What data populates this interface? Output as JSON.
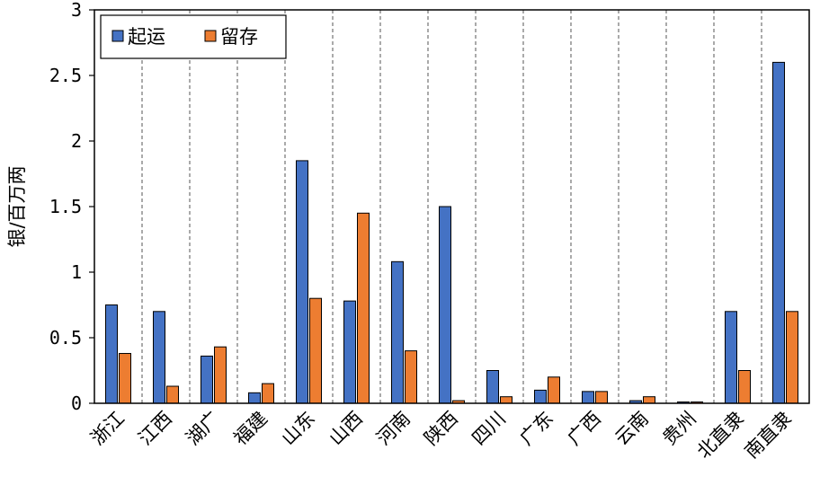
{
  "chart_data": {
    "type": "bar",
    "ylabel": "银/百万两",
    "ylim": [
      0,
      3
    ],
    "yticks": [
      "0",
      "0.5",
      "1",
      "1.5",
      "2",
      "2.5",
      "3"
    ],
    "categories": [
      "浙江",
      "江西",
      "湖广",
      "福建",
      "山东",
      "山西",
      "河南",
      "陕西",
      "四川",
      "广东",
      "广西",
      "云南",
      "贵州",
      "北直隶",
      "南直隶"
    ],
    "series": [
      {
        "name": "起运",
        "color": "#4472C4",
        "values": [
          0.75,
          0.7,
          0.36,
          0.08,
          1.85,
          0.78,
          1.08,
          1.5,
          0.25,
          0.1,
          0.09,
          0.02,
          0.01,
          0.7,
          2.6
        ]
      },
      {
        "name": "留存",
        "color": "#ED7D31",
        "values": [
          0.38,
          0.13,
          0.43,
          0.15,
          0.8,
          1.45,
          0.4,
          0.02,
          0.05,
          0.2,
          0.09,
          0.05,
          0.01,
          0.25,
          0.7
        ]
      }
    ],
    "legend_position": "top-left",
    "grid": "vertical dashed separators between categories"
  }
}
